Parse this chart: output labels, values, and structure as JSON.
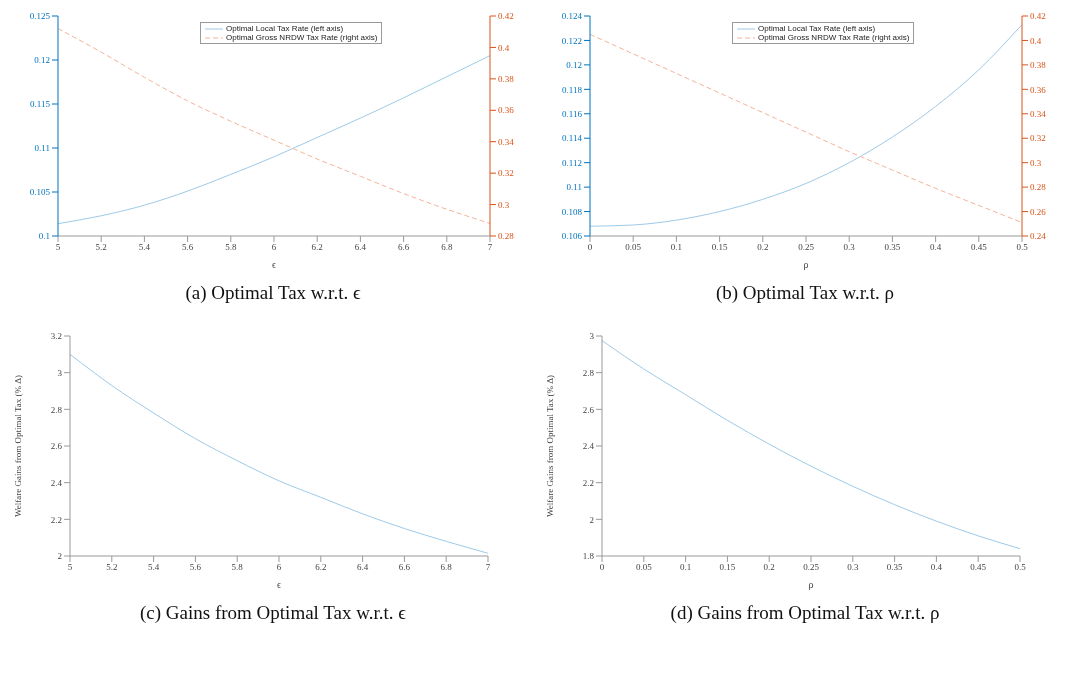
{
  "chart_data": [
    {
      "type": "line",
      "title": "(a) Optimal Tax w.r.t. ϵ",
      "xlabel": "ϵ",
      "x": [
        5,
        5.2,
        5.4,
        5.6,
        5.8,
        6,
        6.2,
        6.4,
        6.6,
        6.8,
        7
      ],
      "xlim": [
        5,
        7
      ],
      "xticks": [
        5,
        5.2,
        5.4,
        5.6,
        5.8,
        6,
        6.2,
        6.4,
        6.6,
        6.8,
        7
      ],
      "ylim": [
        0.1,
        0.125
      ],
      "yticks": [
        0.1,
        0.105,
        0.11,
        0.115,
        0.12,
        0.125
      ],
      "y2lim": [
        0.28,
        0.42
      ],
      "y2ticks": [
        0.28,
        0.3,
        0.32,
        0.34,
        0.36,
        0.38,
        0.4,
        0.42
      ],
      "grid": false,
      "legend": "top",
      "marker": "none",
      "series": [
        {
          "name": "Optimal Local Tax Rate (left axis)",
          "color": "#9ecae9",
          "line_style": "solid",
          "values": [
            0.1014,
            0.1023,
            0.1035,
            0.1051,
            0.107,
            0.109,
            0.1112,
            0.1134,
            0.1157,
            0.1181,
            0.1205
          ]
        },
        {
          "name": "Optimal Gross NRDW Tax Rate (right axis)",
          "color": "#f4b39a",
          "line_style": "dashed",
          "axis": "y2",
          "values": [
            0.412,
            0.397,
            0.381,
            0.366,
            0.353,
            0.341,
            0.329,
            0.318,
            0.307,
            0.297,
            0.288
          ]
        }
      ]
    },
    {
      "type": "line",
      "title": "(b) Optimal Tax w.r.t. ρ",
      "xlabel": "ρ",
      "x": [
        0,
        0.05,
        0.1,
        0.15,
        0.2,
        0.25,
        0.3,
        0.35,
        0.4,
        0.45,
        0.5
      ],
      "xlim": [
        0,
        0.5
      ],
      "xticks": [
        0,
        0.05,
        0.1,
        0.15,
        0.2,
        0.25,
        0.3,
        0.35,
        0.4,
        0.45,
        0.5
      ],
      "ylim": [
        0.106,
        0.124
      ],
      "yticks": [
        0.106,
        0.108,
        0.11,
        0.112,
        0.114,
        0.116,
        0.118,
        0.12,
        0.122,
        0.124
      ],
      "y2lim": [
        0.24,
        0.42
      ],
      "y2ticks": [
        0.24,
        0.26,
        0.28,
        0.3,
        0.32,
        0.34,
        0.36,
        0.38,
        0.4,
        0.42
      ],
      "grid": false,
      "legend": "top",
      "marker": "none",
      "series": [
        {
          "name": "Optimal Local Tax Rate (left axis)",
          "color": "#9ecae9",
          "line_style": "solid",
          "values": [
            0.1068,
            0.1069,
            0.1073,
            0.108,
            0.109,
            0.1103,
            0.112,
            0.1141,
            0.1166,
            0.1196,
            0.1233
          ]
        },
        {
          "name": "Optimal Gross NRDW Tax Rate (right axis)",
          "color": "#f4b39a",
          "line_style": "dashed",
          "axis": "y2",
          "values": [
            0.405,
            0.389,
            0.373,
            0.357,
            0.341,
            0.325,
            0.309,
            0.294,
            0.279,
            0.265,
            0.251
          ]
        }
      ]
    },
    {
      "type": "line",
      "title": "(c) Gains from Optimal Tax w.r.t. ϵ",
      "xlabel": "ϵ",
      "ylabel": "Welfare Gains from Optimal Tax (% Δ)",
      "x": [
        5,
        5.2,
        5.4,
        5.6,
        5.8,
        6,
        6.2,
        6.4,
        6.6,
        6.8,
        7
      ],
      "xlim": [
        5,
        7
      ],
      "xticks": [
        5,
        5.2,
        5.4,
        5.6,
        5.8,
        6,
        6.2,
        6.4,
        6.6,
        6.8,
        7
      ],
      "ylim": [
        2,
        3.2
      ],
      "yticks": [
        2,
        2.2,
        2.4,
        2.6,
        2.8,
        3,
        3.2
      ],
      "grid": false,
      "marker": "none",
      "series": [
        {
          "color": "#9ecae9",
          "line_style": "solid",
          "values": [
            3.1,
            2.93,
            2.78,
            2.64,
            2.52,
            2.41,
            2.32,
            2.23,
            2.15,
            2.08,
            2.015
          ]
        }
      ]
    },
    {
      "type": "line",
      "title": "(d) Gains from Optimal Tax w.r.t. ρ",
      "xlabel": "ρ",
      "ylabel": "Welfare Gains from Optimal Tax (% Δ)",
      "x": [
        0,
        0.05,
        0.1,
        0.15,
        0.2,
        0.25,
        0.3,
        0.35,
        0.4,
        0.45,
        0.5
      ],
      "xlim": [
        0,
        0.5
      ],
      "xticks": [
        0,
        0.05,
        0.1,
        0.15,
        0.2,
        0.25,
        0.3,
        0.35,
        0.4,
        0.45,
        0.5
      ],
      "ylim": [
        1.8,
        3
      ],
      "yticks": [
        1.8,
        2,
        2.2,
        2.4,
        2.6,
        2.8,
        3
      ],
      "grid": false,
      "marker": "none",
      "series": [
        {
          "color": "#9ecae9",
          "line_style": "solid",
          "values": [
            2.975,
            2.82,
            2.68,
            2.54,
            2.41,
            2.29,
            2.18,
            2.08,
            1.99,
            1.91,
            1.84
          ]
        }
      ]
    }
  ]
}
